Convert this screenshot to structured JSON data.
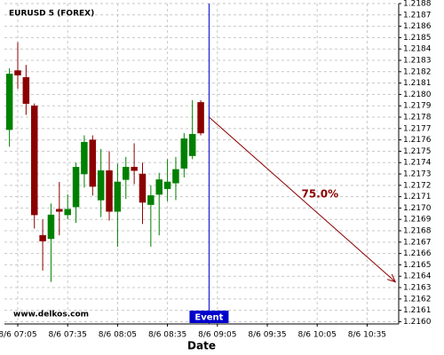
{
  "chart_data": {
    "type": "candlestick",
    "title": "EURUSD 5 (FOREX)",
    "watermark": "www.delkos.com",
    "x_label": "Date",
    "x": [
      420,
      425,
      430,
      435,
      440,
      445,
      450,
      455,
      460,
      465,
      470,
      475,
      480,
      485,
      490,
      495,
      500,
      505,
      510,
      515,
      520,
      525,
      530,
      535
    ],
    "open": [
      1.21769,
      1.21821,
      1.21815,
      1.2179,
      1.21676,
      1.21673,
      1.21699,
      1.21694,
      1.21701,
      1.2173,
      1.2176,
      1.21707,
      1.21733,
      1.21697,
      1.21725,
      1.21736,
      1.2173,
      1.21703,
      1.21712,
      1.21717,
      1.21722,
      1.21735,
      1.21746,
      1.21793
    ],
    "high": [
      1.21823,
      1.21846,
      1.21826,
      1.21792,
      1.2169,
      1.21704,
      1.21723,
      1.21712,
      1.2174,
      1.21764,
      1.21764,
      1.21752,
      1.2175,
      1.21739,
      1.21745,
      1.21757,
      1.2174,
      1.2172,
      1.21731,
      1.21743,
      1.21745,
      1.21766,
      1.21795,
      1.21795
    ],
    "low": [
      1.21754,
      1.21805,
      1.21782,
      1.21682,
      1.21645,
      1.21635,
      1.21676,
      1.2169,
      1.21687,
      1.21718,
      1.21711,
      1.21692,
      1.21689,
      1.21666,
      1.21708,
      1.21721,
      1.21686,
      1.21666,
      1.21676,
      1.21706,
      1.21707,
      1.21727,
      1.21743,
      1.21764
    ],
    "close": [
      1.21818,
      1.21817,
      1.21792,
      1.21694,
      1.21671,
      1.21694,
      1.21697,
      1.21699,
      1.21736,
      1.21758,
      1.21719,
      1.21733,
      1.21697,
      1.21723,
      1.21736,
      1.21733,
      1.21705,
      1.21711,
      1.21725,
      1.21723,
      1.21734,
      1.21761,
      1.21765,
      1.21766
    ],
    "up_color": "#008000",
    "down_color": "#8b0000",
    "xlim": [
      417,
      654
    ],
    "xticks": [
      {
        "value": 425,
        "label": "8/6 07:05"
      },
      {
        "value": 455,
        "label": "8/6 07:35"
      },
      {
        "value": 485,
        "label": "8/6 08:05"
      },
      {
        "value": 515,
        "label": "8/6 08:35"
      },
      {
        "value": 545,
        "label": "8/6 09:05"
      },
      {
        "value": 575,
        "label": "8/6 09:35"
      },
      {
        "value": 605,
        "label": "8/6 10:05"
      },
      {
        "value": 635,
        "label": "8/6 10:35"
      }
    ],
    "ylim": [
      1.21598,
      1.2188
    ],
    "yticks": [
      {
        "value": 1.216,
        "label": "1.2160"
      },
      1.2161,
      1.2162,
      1.2163,
      1.2164,
      1.2165,
      1.2166,
      1.2167,
      1.2168,
      1.2169,
      {
        "value": 1.217,
        "label": "1.2170"
      },
      1.2171,
      1.2172,
      1.2173,
      1.2174,
      1.2175,
      1.2176,
      1.2177,
      1.2178,
      1.2179,
      {
        "value": 1.218,
        "label": "1.2180"
      },
      1.2181,
      1.2182,
      1.2183,
      1.2184,
      1.2185,
      1.2186,
      1.2187,
      1.2188
    ],
    "grid": true,
    "event": {
      "label": "Event",
      "x": 540,
      "color": "#0000cc"
    },
    "projection": {
      "label": "75.0%",
      "x": [
        540,
        652
      ],
      "y": [
        1.2178,
        1.21635
      ],
      "color": "#8b0000"
    }
  }
}
